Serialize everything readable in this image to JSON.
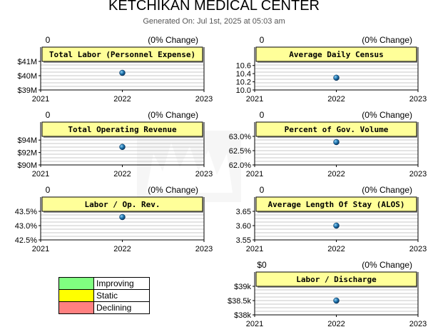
{
  "title": "KETCHIKAN MEDICAL CENTER",
  "generated": "Generated On: Jul 1st, 2025 at 05:03 am",
  "colors": {
    "panel_fill": "#ffff99",
    "grid": "#c8c8c8",
    "point": "#1a6fa8",
    "improving": "#80ff80",
    "static": "#ffff00",
    "declining": "#ff8080"
  },
  "legend": [
    {
      "label": "Improving",
      "color": "#80ff80"
    },
    {
      "label": "Static",
      "color": "#ffff00"
    },
    {
      "label": "Declining",
      "color": "#ff8080"
    }
  ],
  "chart_data": [
    {
      "type": "scatter",
      "title": "Total Labor (Personnel Expense)",
      "change_value": "0",
      "change_pct": "(0% Change)",
      "categories": [
        "2021",
        "2022",
        "2023"
      ],
      "x": [
        "2022"
      ],
      "values": [
        40.2
      ],
      "ylim": [
        39,
        41
      ],
      "yticks": [
        39,
        40,
        41
      ],
      "ytick_labels": [
        "$39M",
        "$40M",
        "$41M"
      ],
      "grid": true,
      "xlabel": "",
      "ylabel": ""
    },
    {
      "type": "scatter",
      "title": "Average Daily Census",
      "change_value": "0",
      "change_pct": "(0% Change)",
      "categories": [
        "2021",
        "2022",
        "2023"
      ],
      "x": [
        "2022"
      ],
      "values": [
        10.3
      ],
      "ylim": [
        10.0,
        10.7
      ],
      "yticks": [
        10.0,
        10.2,
        10.4,
        10.6
      ],
      "ytick_labels": [
        "10.0",
        "10.2",
        "10.4",
        "10.6"
      ],
      "grid": true,
      "xlabel": "",
      "ylabel": ""
    },
    {
      "type": "scatter",
      "title": "Total Operating Revenue",
      "change_value": "0",
      "change_pct": "(0% Change)",
      "categories": [
        "2021",
        "2022",
        "2023"
      ],
      "x": [
        "2022"
      ],
      "values": [
        92.9
      ],
      "ylim": [
        90,
        94.6
      ],
      "yticks": [
        90,
        92,
        94
      ],
      "ytick_labels": [
        "$90M",
        "$92M",
        "$94M"
      ],
      "grid": true,
      "xlabel": "",
      "ylabel": ""
    },
    {
      "type": "scatter",
      "title": "Percent of Gov. Volume",
      "change_value": "0",
      "change_pct": "(0% Change)",
      "categories": [
        "2021",
        "2022",
        "2023"
      ],
      "x": [
        "2022"
      ],
      "values": [
        62.8
      ],
      "ylim": [
        62.0,
        63.0
      ],
      "yticks": [
        62.0,
        62.5,
        63.0
      ],
      "ytick_labels": [
        "62.0%",
        "62.5%",
        "63.0%"
      ],
      "grid": true,
      "xlabel": "",
      "ylabel": ""
    },
    {
      "type": "scatter",
      "title": "Labor / Op. Rev.",
      "change_value": "0",
      "change_pct": "(0% Change)",
      "categories": [
        "2021",
        "2022",
        "2023"
      ],
      "x": [
        "2022"
      ],
      "values": [
        43.3
      ],
      "ylim": [
        42.5,
        43.5
      ],
      "yticks": [
        42.5,
        43.0,
        43.5
      ],
      "ytick_labels": [
        "42.5%",
        "43.0%",
        "43.5%"
      ],
      "grid": true,
      "xlabel": "",
      "ylabel": ""
    },
    {
      "type": "scatter",
      "title": "Average Length Of Stay (ALOS)",
      "change_value": "0",
      "change_pct": "(0% Change)",
      "categories": [
        "2021",
        "2022",
        "2023"
      ],
      "x": [
        "2022"
      ],
      "values": [
        3.6
      ],
      "ylim": [
        3.55,
        3.65
      ],
      "yticks": [
        3.55,
        3.6,
        3.65
      ],
      "ytick_labels": [
        "3.55",
        "3.60",
        "3.65"
      ],
      "grid": true,
      "xlabel": "",
      "ylabel": ""
    },
    {
      "type": "scatter",
      "title": "Labor / Discharge",
      "change_value": "$0",
      "change_pct": "(0% Change)",
      "categories": [
        "2021",
        "2022",
        "2023"
      ],
      "x": [
        "2022"
      ],
      "values": [
        38.5
      ],
      "ylim": [
        38,
        39
      ],
      "yticks": [
        38,
        38.5,
        39
      ],
      "ytick_labels": [
        "$38k",
        "$38.5k",
        "$39k"
      ],
      "grid": true,
      "xlabel": "",
      "ylabel": ""
    }
  ]
}
